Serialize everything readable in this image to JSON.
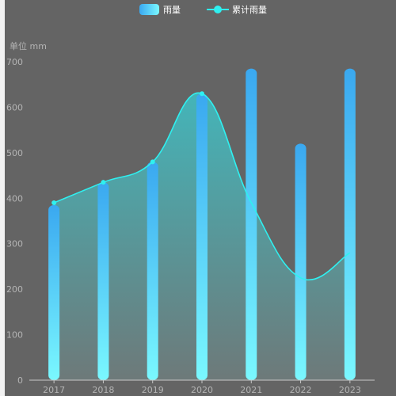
{
  "chart_data": {
    "type": "bar",
    "categories": [
      "2017",
      "2018",
      "2019",
      "2020",
      "2021",
      "2022",
      "2023"
    ],
    "series": [
      {
        "name": "雨量",
        "type": "bar",
        "values": [
          385,
          435,
          480,
          630,
          685,
          520,
          685
        ]
      },
      {
        "name": "累计雨量",
        "type": "line",
        "smooth": true,
        "area": true,
        "values": [
          390,
          435,
          480,
          630,
          390,
          225,
          280
        ]
      }
    ],
    "ylabel": "单位 mm",
    "yticks": [
      0,
      100,
      200,
      300,
      400,
      500,
      600,
      700
    ],
    "ylim": [
      0,
      700
    ],
    "legend_position": "top-center",
    "colors": {
      "bar_top": "#3aa8f0",
      "bar_bottom": "#7af8ff",
      "line": "#2ff0f0",
      "area_top": "#3ec3c8",
      "area_bottom": "#6f7d7d",
      "background": "#646464",
      "axis": "#c8c8c8",
      "tick_text": "#b4b4b4"
    }
  }
}
